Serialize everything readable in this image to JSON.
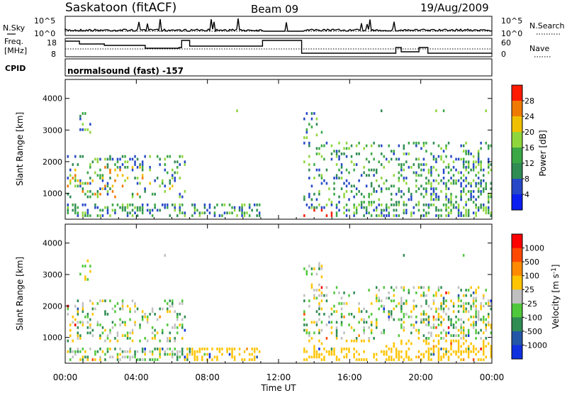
{
  "header": {
    "station": "Saskatoon (fitACF)",
    "beam": "Beam 09",
    "date": "19/Aug/2009"
  },
  "aux_panels": {
    "nsky_label": "N.Sky",
    "nsearch_label": "N.Search",
    "noise_ticks_left": [
      "10^5",
      "10^0"
    ],
    "noise_ticks_right": [
      "10^5",
      "10^0"
    ],
    "freq_label_1": "Freq.",
    "freq_label_2": "[MHz]",
    "freq_ticks": [
      "18",
      "8"
    ],
    "nave_label": "Nave",
    "nave_ticks": [
      "60",
      "0"
    ],
    "cpid_label": "CPID",
    "cpid_text": "normalsound (fast) -157"
  },
  "chart_data": [
    {
      "type": "heatmap",
      "name": "power-panel",
      "ylabel": "Slant Range [km]",
      "yticks": [
        1000,
        2000,
        3000,
        4000
      ],
      "ylim": [
        180,
        4600
      ],
      "colorbar": {
        "label": "Power [dB]",
        "ticks": [
          4,
          8,
          12,
          16,
          20,
          24,
          28
        ],
        "colors": [
          "#0a1ff0",
          "#2648c8",
          "#2f8c52",
          "#3aa845",
          "#8fd63c",
          "#f0c000",
          "#f07a00",
          "#ff1a00"
        ]
      },
      "gap_hours": [
        11.05,
        13.3
      ]
    },
    {
      "type": "heatmap",
      "name": "velocity-panel",
      "ylabel": "Slant Range [km]",
      "yticks": [
        1000,
        2000,
        3000,
        4000
      ],
      "ylim": [
        180,
        4600
      ],
      "colorbar": {
        "label": "Velocity [m s^-1]",
        "ticks": [
          "1000",
          "500",
          "100",
          "25",
          "-25",
          "-100",
          "-500",
          "-1000"
        ],
        "colors": [
          "#1030e0",
          "#2456a8",
          "#2f8c52",
          "#50c83c",
          "#c0c0c0",
          "#ffc400",
          "#ff8a00",
          "#ff4800",
          "#ff0000"
        ]
      },
      "gap_hours": [
        11.05,
        13.3
      ]
    }
  ],
  "time_axis": {
    "xlabel": "Time UT",
    "xticks": [
      "00:00",
      "04:00",
      "08:00",
      "12:00",
      "16:00",
      "20:00",
      "00:00"
    ],
    "xlim_hours": [
      0,
      24
    ]
  }
}
